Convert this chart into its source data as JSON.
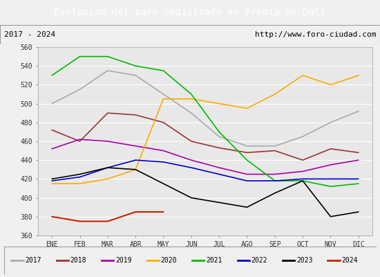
{
  "title": "Evolucion del paro registrado en Premià de Dalt",
  "subtitle_left": "2017 - 2024",
  "subtitle_right": "http://www.foro-ciudad.com",
  "xlabel_months": [
    "ENE",
    "FEB",
    "MAR",
    "ABR",
    "MAY",
    "JUN",
    "JUL",
    "AGO",
    "SEP",
    "OCT",
    "NOV",
    "DIC"
  ],
  "ylim": [
    360,
    560
  ],
  "yticks": [
    360,
    380,
    400,
    420,
    440,
    460,
    480,
    500,
    520,
    540,
    560
  ],
  "series": {
    "2017": {
      "color": "#aaaaaa",
      "linewidth": 1.2,
      "values": [
        500,
        515,
        535,
        530,
        510,
        490,
        465,
        455,
        455,
        465,
        480,
        492
      ]
    },
    "2018": {
      "color": "#993333",
      "linewidth": 1.2,
      "values": [
        472,
        460,
        490,
        488,
        480,
        460,
        453,
        448,
        450,
        440,
        452,
        448
      ]
    },
    "2019": {
      "color": "#aa00aa",
      "linewidth": 1.2,
      "values": [
        452,
        462,
        460,
        455,
        450,
        440,
        432,
        425,
        425,
        428,
        435,
        440
      ]
    },
    "2020": {
      "color": "#ffaa00",
      "linewidth": 1.2,
      "values": [
        415,
        415,
        420,
        430,
        505,
        505,
        500,
        495,
        510,
        530,
        520,
        530
      ]
    },
    "2021": {
      "color": "#00bb00",
      "linewidth": 1.2,
      "values": [
        530,
        550,
        550,
        540,
        535,
        510,
        470,
        440,
        418,
        418,
        412,
        415
      ]
    },
    "2022": {
      "color": "#0000cc",
      "linewidth": 1.2,
      "values": [
        418,
        422,
        432,
        440,
        438,
        432,
        425,
        418,
        418,
        420,
        420,
        420
      ]
    },
    "2023": {
      "color": "#000000",
      "linewidth": 1.2,
      "values": [
        420,
        425,
        432,
        430,
        415,
        400,
        395,
        390,
        405,
        418,
        380,
        385
      ]
    },
    "2024": {
      "color": "#cc2200",
      "linewidth": 1.5,
      "values": [
        380,
        375,
        375,
        385,
        385,
        null,
        null,
        null,
        null,
        null,
        null,
        null
      ]
    }
  },
  "background_color": "#f0f0f0",
  "plot_bg_color": "#e8e8e8",
  "title_bg_color": "#5b8dd9",
  "title_color": "#ffffff",
  "grid_color": "#ffffff",
  "border_color": "#999999",
  "legend_years": [
    "2017",
    "2018",
    "2019",
    "2020",
    "2021",
    "2022",
    "2023",
    "2024"
  ]
}
